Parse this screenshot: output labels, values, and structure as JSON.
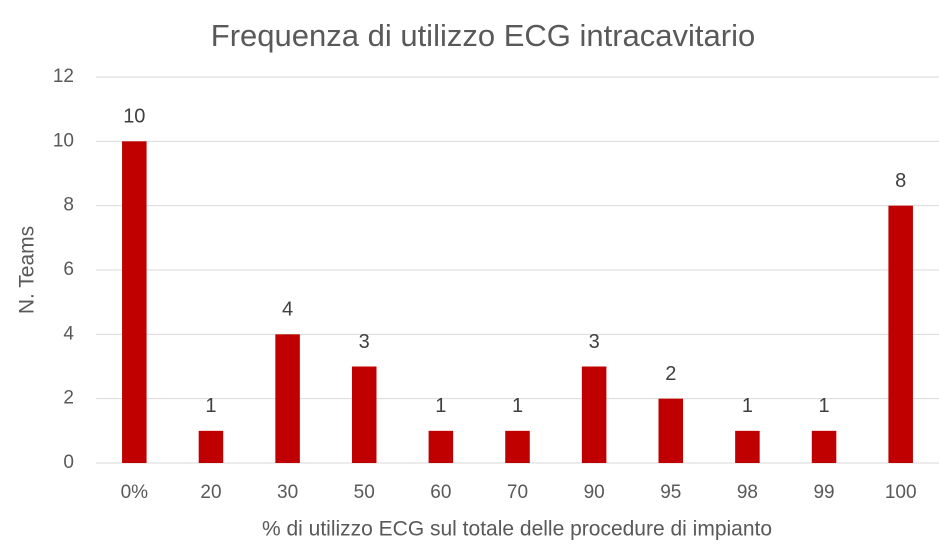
{
  "chart_data": {
    "type": "bar",
    "title": "Frequenza di utilizzo ECG intracavitario",
    "x_label": "% di utilizzo  ECG  sul totale delle procedure di impianto",
    "y_label": "N. Teams",
    "categories": [
      "0%",
      "20",
      "30",
      "50",
      "60",
      "70",
      "90",
      "95",
      "98",
      "99",
      "100"
    ],
    "values": [
      10,
      1,
      4,
      3,
      1,
      1,
      3,
      2,
      1,
      1,
      8
    ],
    "color": "#c00000",
    "ylim": [
      0,
      12
    ],
    "yticks": [
      0,
      2,
      4,
      6,
      8,
      10,
      12
    ],
    "grid": true
  }
}
